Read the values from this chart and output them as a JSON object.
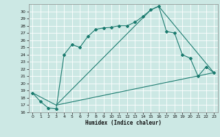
{
  "xlabel": "Humidex (Indice chaleur)",
  "bg_color": "#cce8e4",
  "grid_color": "#ffffff",
  "line_color": "#1a7a6e",
  "xlim": [
    -0.5,
    23.5
  ],
  "ylim": [
    16,
    31
  ],
  "xticks": [
    0,
    1,
    2,
    3,
    4,
    5,
    6,
    7,
    8,
    9,
    10,
    11,
    12,
    13,
    14,
    15,
    16,
    17,
    18,
    19,
    20,
    21,
    22,
    23
  ],
  "yticks": [
    16,
    17,
    18,
    19,
    20,
    21,
    22,
    23,
    24,
    25,
    26,
    27,
    28,
    29,
    30
  ],
  "line1_x": [
    0,
    1,
    2,
    3,
    4,
    5,
    6,
    7,
    8,
    9,
    10,
    11,
    12,
    13,
    14,
    15,
    16,
    17,
    18,
    19,
    20,
    21,
    22,
    23
  ],
  "line1_y": [
    18.7,
    17.5,
    16.6,
    16.5,
    24.0,
    25.4,
    25.0,
    26.5,
    27.5,
    27.7,
    27.8,
    28.0,
    28.0,
    28.5,
    29.3,
    30.2,
    30.7,
    27.2,
    27.0,
    24.0,
    23.5,
    21.0,
    22.3,
    21.5
  ],
  "line2_x": [
    0,
    3,
    15,
    16,
    23
  ],
  "line2_y": [
    18.7,
    17.0,
    30.2,
    30.7,
    21.5
  ],
  "line3_x": [
    3,
    23
  ],
  "line3_y": [
    17.0,
    21.5
  ]
}
